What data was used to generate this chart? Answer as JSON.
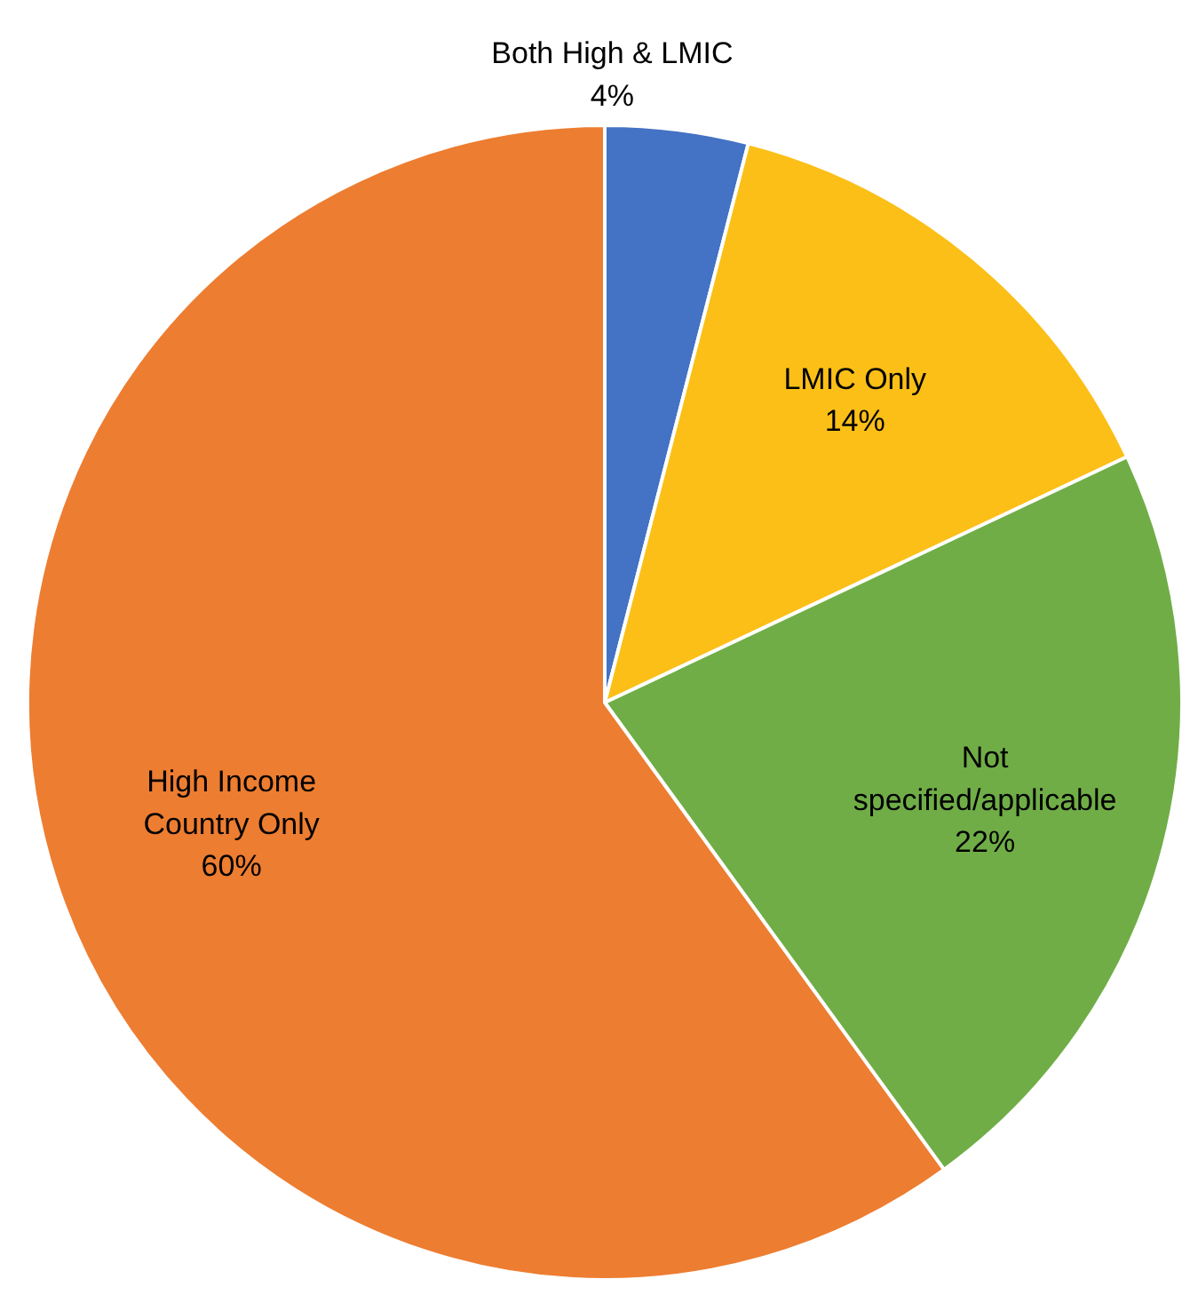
{
  "chart_data": {
    "type": "pie",
    "categories": [
      "Both High & LMIC",
      "LMIC Only",
      "Not specified/applicable",
      "High Income Country Only"
    ],
    "values": [
      4,
      14,
      22,
      60
    ],
    "value_labels": [
      "4%",
      "14%",
      "22%",
      "60%"
    ],
    "colors": [
      "#4472c4",
      "#fbbf17",
      "#70ad47",
      "#ed7d31"
    ]
  }
}
